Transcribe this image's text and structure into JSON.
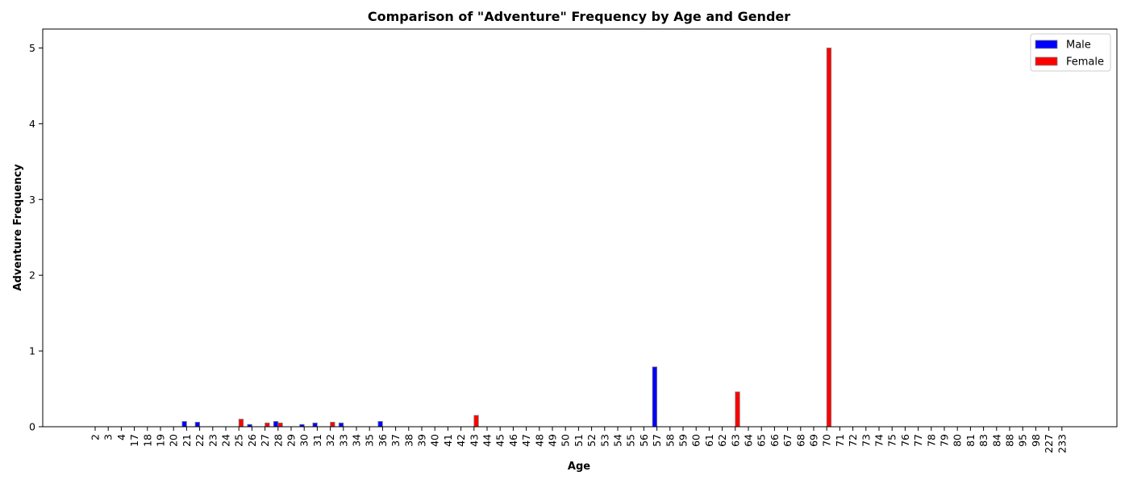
{
  "chart_data": {
    "type": "bar",
    "title": "Comparison of \"Adventure\" Frequency by Age and Gender",
    "xlabel": "Age",
    "ylabel": "Adventure Frequency",
    "ylim": [
      0,
      5.25
    ],
    "yticks": [
      0,
      1,
      2,
      3,
      4,
      5
    ],
    "grid": false,
    "legend_position": "top-right",
    "categories": [
      "2",
      "3",
      "4",
      "17",
      "18",
      "19",
      "20",
      "21",
      "22",
      "23",
      "24",
      "25",
      "26",
      "27",
      "28",
      "29",
      "30",
      "31",
      "32",
      "33",
      "34",
      "35",
      "36",
      "37",
      "38",
      "39",
      "40",
      "41",
      "42",
      "43",
      "44",
      "45",
      "46",
      "47",
      "48",
      "49",
      "50",
      "51",
      "52",
      "53",
      "54",
      "55",
      "56",
      "57",
      "58",
      "59",
      "60",
      "61",
      "62",
      "63",
      "64",
      "65",
      "66",
      "67",
      "68",
      "69",
      "70",
      "71",
      "72",
      "73",
      "74",
      "75",
      "76",
      "77",
      "78",
      "79",
      "80",
      "81",
      "83",
      "84",
      "88",
      "95",
      "98",
      "227",
      "233"
    ],
    "series": [
      {
        "name": "Male",
        "color": "#0000ff",
        "values": [
          0,
          0,
          0,
          0,
          0,
          0,
          0,
          0.07,
          0.06,
          0,
          0,
          0,
          0.03,
          0,
          0.07,
          0,
          0.03,
          0.05,
          0,
          0.05,
          0,
          0,
          0.07,
          0,
          0,
          0,
          0,
          0,
          0,
          0,
          0,
          0,
          0,
          0,
          0,
          0,
          0,
          0,
          0,
          0,
          0,
          0,
          0,
          0.79,
          0,
          0,
          0,
          0,
          0,
          0,
          0,
          0,
          0,
          0,
          0,
          0,
          0,
          0,
          0,
          0,
          0,
          0,
          0,
          0,
          0,
          0,
          0,
          0,
          0,
          0,
          0,
          0,
          0,
          0,
          0
        ]
      },
      {
        "name": "Female",
        "color": "#ff0000",
        "values": [
          0,
          0,
          0,
          0,
          0,
          0,
          0,
          0,
          0,
          0,
          0,
          0.1,
          0,
          0.05,
          0.05,
          0,
          0,
          0,
          0.06,
          0,
          0,
          0,
          0,
          0,
          0,
          0,
          0,
          0,
          0,
          0.15,
          0,
          0,
          0,
          0,
          0,
          0,
          0,
          0,
          0,
          0,
          0,
          0,
          0,
          0,
          0,
          0,
          0,
          0,
          0,
          0.46,
          0,
          0,
          0,
          0,
          0,
          0,
          5.0,
          0,
          0,
          0,
          0,
          0,
          0,
          0,
          0,
          0,
          0,
          0,
          0,
          0,
          0,
          0,
          0,
          0,
          0
        ]
      }
    ]
  }
}
